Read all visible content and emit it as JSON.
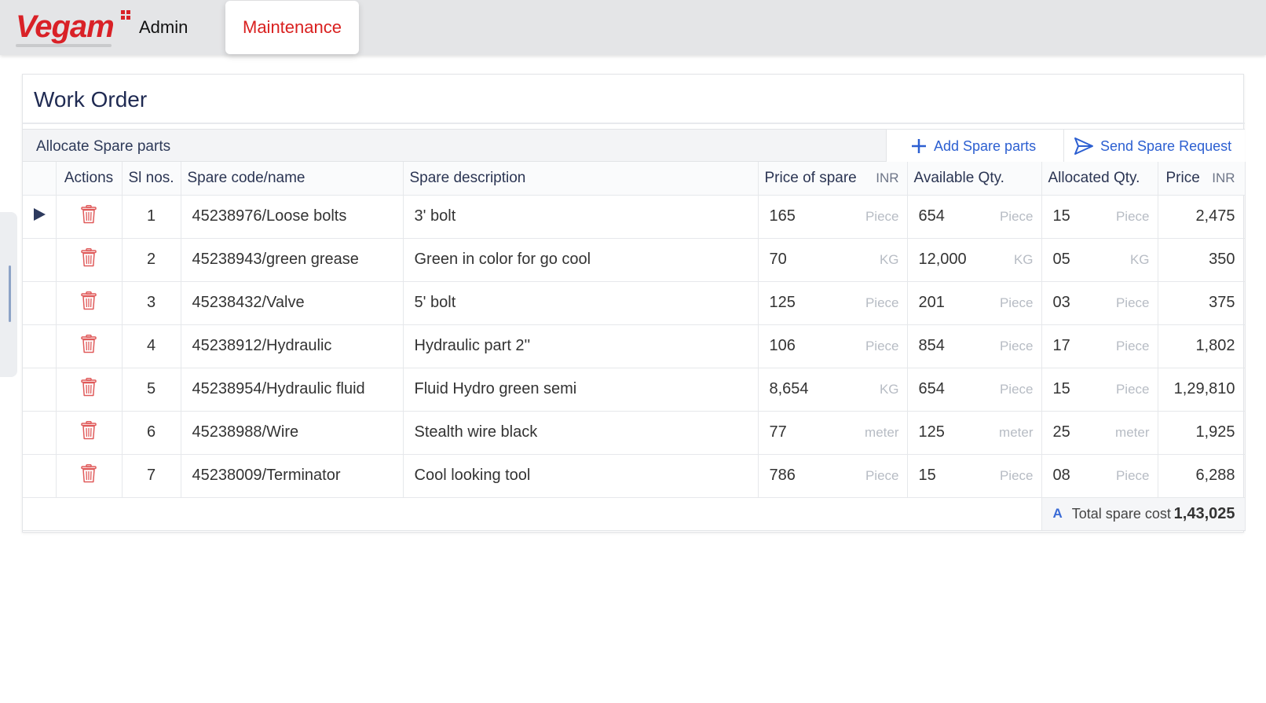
{
  "brand": {
    "logo_text": "Vegam",
    "primary_color": "#d92127",
    "accent_color": "#2c5fd1"
  },
  "nav": {
    "admin_label": "Admin",
    "active_tab": "Maintenance"
  },
  "page": {
    "title": "Work Order"
  },
  "section": {
    "label": "Allocate Spare parts",
    "add_button": "Add Spare parts",
    "send_button": "Send Spare Request"
  },
  "table": {
    "headers": {
      "actions": "Actions",
      "sl": "Sl nos.",
      "code": "Spare code/name",
      "description": "Spare description",
      "price_of_spare": "Price of spare",
      "price_currency": "INR",
      "available": "Available Qty.",
      "allocated": "Allocated Qty.",
      "price": "Price",
      "total_currency": "INR"
    },
    "rows": [
      {
        "sl": "1",
        "code": "45238976/Loose bolts",
        "description": "3' bolt",
        "price": "165",
        "price_unit": "Piece",
        "available": "654",
        "available_unit": "Piece",
        "allocated": "15",
        "allocated_unit": "Piece",
        "total": "2,475"
      },
      {
        "sl": "2",
        "code": "45238943/green grease",
        "description": "Green in color for go cool",
        "price": "70",
        "price_unit": "KG",
        "available": "12,000",
        "available_unit": "KG",
        "allocated": "05",
        "allocated_unit": "KG",
        "total": "350"
      },
      {
        "sl": "3",
        "code": "45238432/Valve",
        "description": "5' bolt",
        "price": "125",
        "price_unit": "Piece",
        "available": "201",
        "available_unit": "Piece",
        "allocated": "03",
        "allocated_unit": "Piece",
        "total": "375"
      },
      {
        "sl": "4",
        "code": "45238912/Hydraulic",
        "description": "Hydraulic part 2''",
        "price": "106",
        "price_unit": "Piece",
        "available": "854",
        "available_unit": "Piece",
        "allocated": "17",
        "allocated_unit": "Piece",
        "total": "1,802"
      },
      {
        "sl": "5",
        "code": "45238954/Hydraulic fluid",
        "description": "Fluid Hydro green semi",
        "price": "8,654",
        "price_unit": "KG",
        "available": "654",
        "available_unit": "Piece",
        "allocated": "15",
        "allocated_unit": "Piece",
        "total": "1,29,810"
      },
      {
        "sl": "6",
        "code": "45238988/Wire",
        "description": "Stealth wire black",
        "price": "77",
        "price_unit": "meter",
        "available": "125",
        "available_unit": "meter",
        "allocated": "25",
        "allocated_unit": "meter",
        "total": "1,925"
      },
      {
        "sl": "7",
        "code": "45238009/Terminator",
        "description": "Cool looking tool",
        "price": "786",
        "price_unit": "Piece",
        "available": "15",
        "available_unit": "Piece",
        "allocated": "08",
        "allocated_unit": "Piece",
        "total": "6,288"
      }
    ],
    "footer": {
      "icon_letter": "A",
      "total_label": "Total spare cost",
      "total_value": "1,43,025"
    }
  },
  "icons": {
    "row_action": "trash-icon",
    "selected_row": "play-arrow-icon",
    "add": "plus-icon",
    "send": "send-icon"
  }
}
